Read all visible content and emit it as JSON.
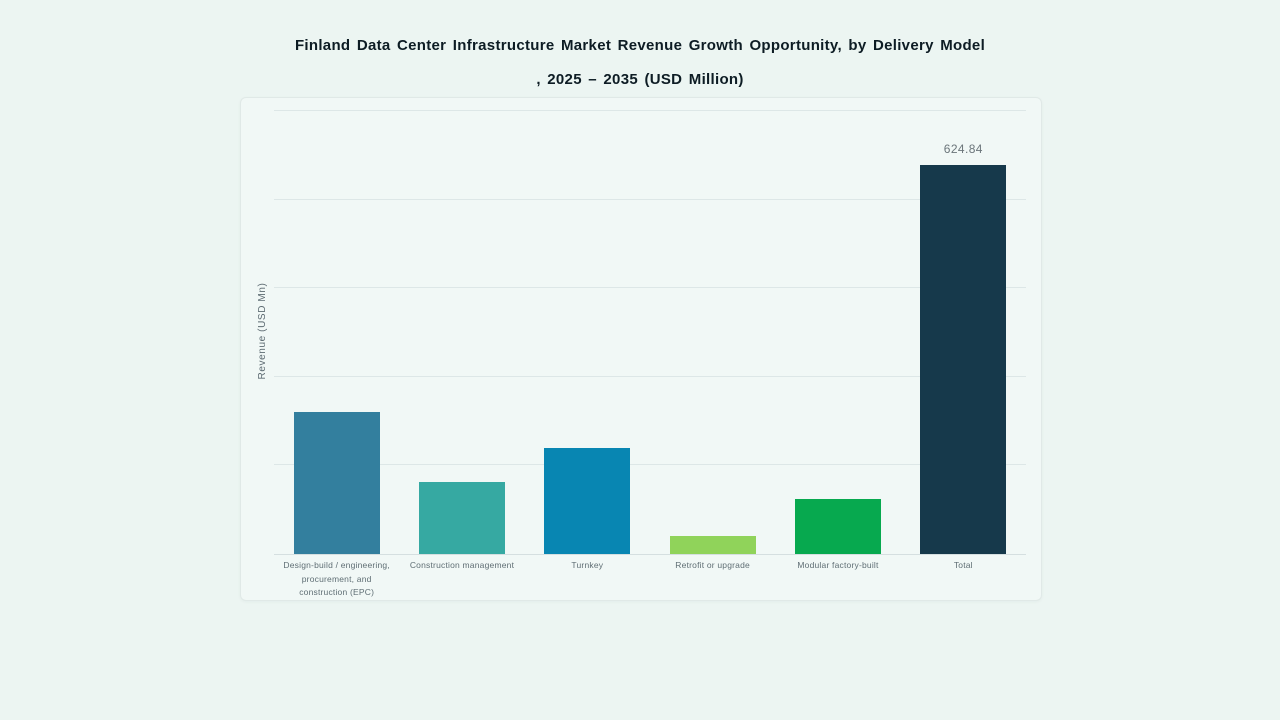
{
  "page": {
    "background": "#ecf5f2"
  },
  "title": {
    "line1": "Finland Data Center Infrastructure Market Revenue Growth Opportunity, by Delivery Model",
    "line2": ", 2025 – 2035 (USD Million)"
  },
  "chart_data": {
    "type": "bar",
    "title": "Finland Data Center Infrastructure Market Revenue Growth Opportunity, by Delivery Model, 2025 – 2035 (USD Million)",
    "xlabel": "",
    "ylabel": "Revenue (USD Mn)",
    "ylim": [
      0,
      711
    ],
    "y_ticks_labeled": false,
    "grid": {
      "horizontal_lines": 6,
      "color": "#dde7e7",
      "vertical": false
    },
    "legend": "none",
    "categories": [
      "Design-build / engineering, procurement, and construction (EPC)",
      "Construction management",
      "Turnkey",
      "Retrofit or upgrade",
      "Modular factory-built",
      "Total"
    ],
    "values": [
      228,
      116,
      170,
      29,
      88,
      624.84
    ],
    "values_estimated_from_pixels": [
      true,
      true,
      true,
      true,
      true,
      false
    ],
    "value_labels": [
      "",
      "",
      "",
      "",
      "",
      "624.84"
    ],
    "bar_colors": [
      "#337f9e",
      "#36a9a2",
      "#0886b2",
      "#90d35a",
      "#07a94f",
      "#16394b"
    ]
  }
}
